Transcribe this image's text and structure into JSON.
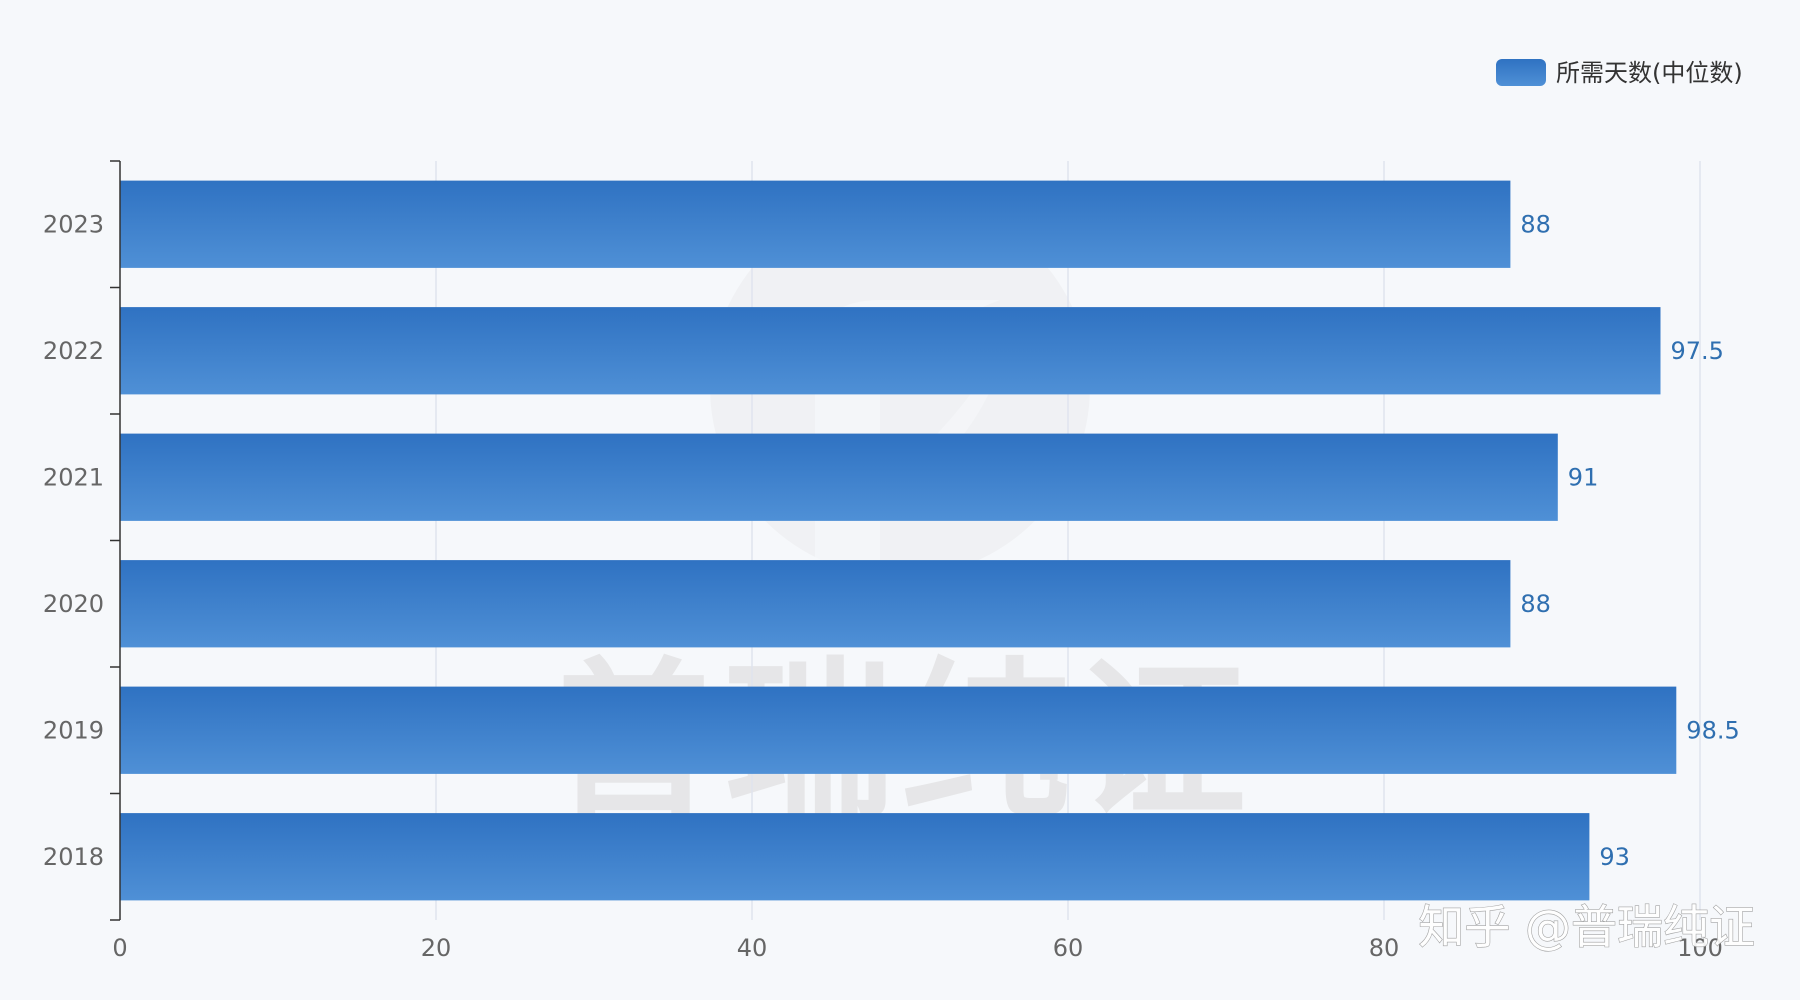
{
  "chart_data": {
    "type": "bar",
    "orientation": "horizontal",
    "categories": [
      "2023",
      "2022",
      "2021",
      "2020",
      "2019",
      "2018"
    ],
    "series": [
      {
        "name": "所需天数(中位数)",
        "values": [
          88,
          97.5,
          91,
          88,
          98.5,
          93
        ],
        "color_top": "#2f72c2",
        "color_bottom": "#4f90d6"
      }
    ],
    "data_labels": [
      "88",
      "97.5",
      "91",
      "88",
      "98.5",
      "93"
    ],
    "xlim": [
      0,
      100
    ],
    "x_ticks": [
      "0",
      "20",
      "40",
      "60",
      "80",
      "100"
    ],
    "x_tick_values": [
      0,
      20,
      40,
      60,
      80,
      100
    ],
    "grid": "vertical",
    "legend_position": "top-right",
    "title": "",
    "xlabel": "",
    "ylabel": ""
  },
  "watermark": {
    "center_text": "普瑞纯证",
    "corner_text": "知乎 @普瑞纯证"
  },
  "colors": {
    "background": "#f6f8fb",
    "grid": "#dfe4ee",
    "axis": "#333333",
    "label": "#2f6fb0"
  }
}
